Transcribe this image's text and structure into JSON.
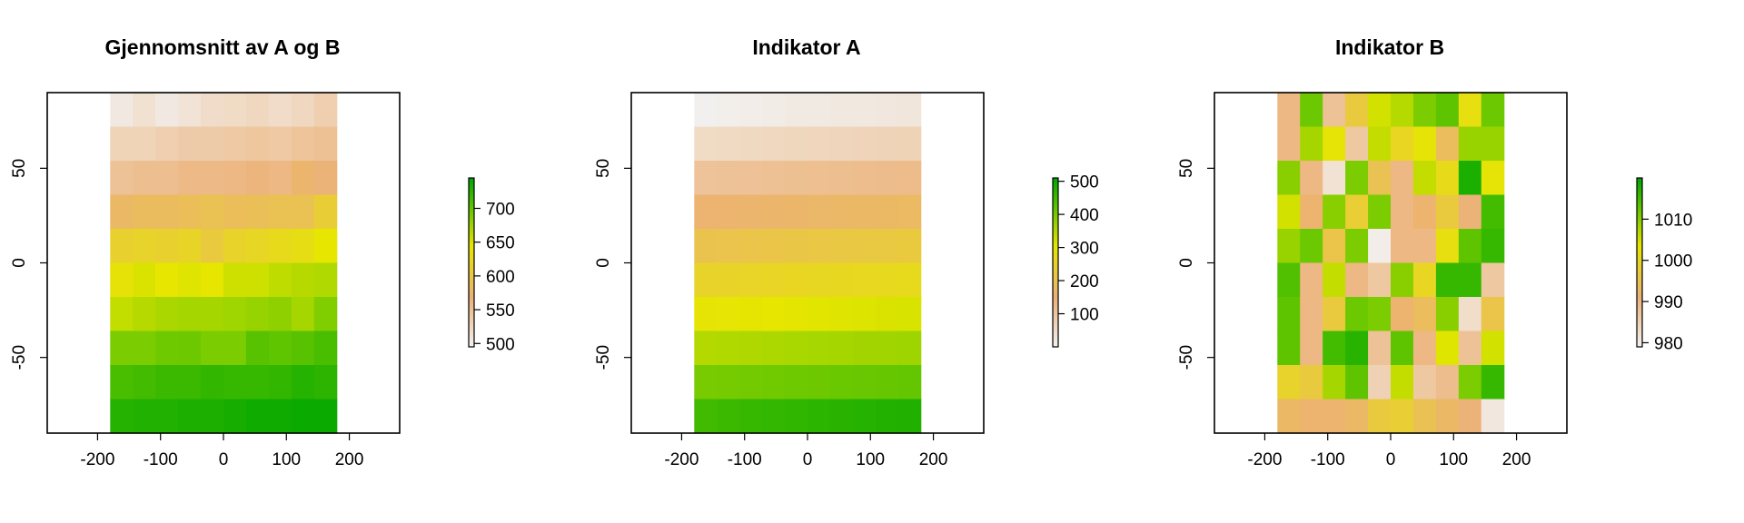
{
  "chart_data": [
    {
      "type": "heatmap",
      "title": "Gjennomsnitt av A og B",
      "xlabel": "",
      "ylabel": "",
      "xlim": [
        -280,
        280
      ],
      "ylim": [
        -90,
        90
      ],
      "x_ticks": [
        -200,
        -100,
        0,
        100,
        200
      ],
      "x_tick_labels": [
        "-200",
        "-100",
        "0",
        "100",
        "200"
      ],
      "y_ticks": [
        -50,
        0,
        50
      ],
      "y_tick_labels": [
        "-50",
        "0",
        "50"
      ],
      "grid": false,
      "legend": "right",
      "cell_x_edges": [
        -180,
        -144,
        -108,
        -72,
        -36,
        0,
        36,
        72,
        108,
        144,
        180
      ],
      "cell_y_edges": [
        90,
        72,
        54,
        36,
        18,
        0,
        -18,
        -36,
        -54,
        -72,
        -90
      ],
      "color_range": [
        495,
        745
      ],
      "colorbar_ticks": [
        500,
        550,
        600,
        650,
        700
      ],
      "colorbar_tick_labels": [
        "500",
        "550",
        "600",
        "650",
        "700"
      ],
      "values": [
        [
          505,
          515,
          505,
          512,
          520,
          522,
          525,
          520,
          525,
          535
        ],
        [
          530,
          530,
          535,
          540,
          540,
          542,
          545,
          542,
          548,
          552
        ],
        [
          550,
          555,
          555,
          560,
          560,
          562,
          565,
          562,
          575,
          568
        ],
        [
          580,
          585,
          585,
          588,
          592,
          588,
          590,
          592,
          592,
          610
        ],
        [
          615,
          618,
          615,
          620,
          605,
          618,
          622,
          628,
          632,
          645
        ],
        [
          640,
          650,
          645,
          648,
          645,
          655,
          655,
          662,
          665,
          668
        ],
        [
          660,
          665,
          670,
          672,
          672,
          675,
          678,
          682,
          672,
          688
        ],
        [
          690,
          690,
          695,
          696,
          690,
          690,
          705,
          702,
          705,
          712
        ],
        [
          712,
          715,
          718,
          718,
          722,
          720,
          720,
          722,
          728,
          725
        ],
        [
          728,
          730,
          730,
          732,
          732,
          735,
          738,
          738,
          740,
          740
        ]
      ]
    },
    {
      "type": "heatmap",
      "title": "Indikator A",
      "xlabel": "",
      "ylabel": "",
      "xlim": [
        -280,
        280
      ],
      "ylim": [
        -90,
        90
      ],
      "x_ticks": [
        -200,
        -100,
        0,
        100,
        200
      ],
      "x_tick_labels": [
        "-200",
        "-100",
        "0",
        "100",
        "200"
      ],
      "y_ticks": [
        -50,
        0,
        50
      ],
      "y_tick_labels": [
        "-50",
        "0",
        "50"
      ],
      "grid": false,
      "legend": "right",
      "cell_x_edges": [
        -180,
        -144,
        -108,
        -72,
        -36,
        0,
        36,
        72,
        108,
        144,
        180
      ],
      "cell_y_edges": [
        90,
        72,
        54,
        36,
        18,
        0,
        -18,
        -36,
        -54,
        -72,
        -90
      ],
      "color_range": [
        0,
        510
      ],
      "colorbar_ticks": [
        100,
        200,
        300,
        400,
        500
      ],
      "colorbar_tick_labels": [
        "100",
        "200",
        "300",
        "400",
        "500"
      ],
      "values": [
        [
          5,
          10,
          12,
          15,
          18,
          20,
          22,
          24,
          25,
          28
        ],
        [
          55,
          57,
          60,
          62,
          64,
          65,
          68,
          70,
          72,
          74
        ],
        [
          110,
          112,
          114,
          116,
          118,
          120,
          122,
          124,
          126,
          128
        ],
        [
          160,
          162,
          164,
          166,
          168,
          170,
          172,
          174,
          176,
          178
        ],
        [
          205,
          208,
          210,
          212,
          214,
          216,
          218,
          220,
          222,
          224
        ],
        [
          250,
          253,
          256,
          258,
          260,
          262,
          264,
          266,
          268,
          270
        ],
        [
          300,
          302,
          304,
          306,
          308,
          310,
          312,
          314,
          316,
          318
        ],
        [
          350,
          352,
          354,
          356,
          358,
          360,
          362,
          364,
          366,
          368
        ],
        [
          400,
          402,
          404,
          406,
          408,
          410,
          412,
          414,
          416,
          418
        ],
        [
          450,
          455,
          460,
          462,
          465,
          470,
          472,
          475,
          478,
          480
        ]
      ]
    },
    {
      "type": "heatmap",
      "title": "Indikator B",
      "xlabel": "",
      "ylabel": "",
      "xlim": [
        -280,
        280
      ],
      "ylim": [
        -90,
        90
      ],
      "x_ticks": [
        -200,
        -100,
        0,
        100,
        200
      ],
      "x_tick_labels": [
        "-200",
        "-100",
        "0",
        "100",
        "200"
      ],
      "y_ticks": [
        -50,
        0,
        50
      ],
      "y_tick_labels": [
        "-50",
        "0",
        "50"
      ],
      "grid": false,
      "legend": "right",
      "cell_x_edges": [
        -180,
        -144,
        -108,
        -72,
        -36,
        0,
        36,
        72,
        108,
        144,
        180
      ],
      "cell_y_edges": [
        90,
        72,
        54,
        36,
        18,
        0,
        -18,
        -36,
        -54,
        -72,
        -90
      ],
      "color_range": [
        979,
        1020
      ],
      "colorbar_ticks": [
        980,
        990,
        1000,
        1010
      ],
      "colorbar_tick_labels": [
        "980",
        "990",
        "1000",
        "1010"
      ],
      "values": [
        [
          990,
          1012,
          988,
          997,
          1005,
          1007,
          1011,
          1013,
          1002,
          1012
        ],
        [
          990,
          1008,
          1003,
          987,
          1006,
          1000,
          1003,
          994,
          1009,
          1009
        ],
        [
          1010,
          990,
          982,
          1011,
          995,
          990,
          1006,
          1001,
          1018,
          1003
        ],
        [
          1005,
          992,
          1010,
          998,
          1011,
          990,
          992,
          997,
          991,
          1015
        ],
        [
          1009,
          1012,
          996,
          1011,
          980,
          990,
          990,
          1002,
          1013,
          1016
        ],
        [
          1014,
          990,
          1006,
          990,
          987,
          1010,
          1000,
          1016,
          1016,
          987
        ],
        [
          1013,
          990,
          997,
          1012,
          1011,
          992,
          994,
          1010,
          983,
          996
        ],
        [
          1013,
          990,
          1015,
          1017,
          988,
          1013,
          990,
          1004,
          988,
          1005
        ],
        [
          999,
          997,
          1008,
          1013,
          985,
          1006,
          987,
          989,
          1011,
          1016
        ],
        [
          993,
          992,
          992,
          993,
          997,
          998,
          995,
          993,
          991,
          981
        ]
      ]
    }
  ],
  "colors": {
    "palette": [
      "#f2f2f2",
      "#ecb176",
      "#e6e600",
      "#63c600",
      "#00a600"
    ],
    "stops": [
      0,
      0.3,
      0.6,
      0.82,
      1
    ]
  }
}
